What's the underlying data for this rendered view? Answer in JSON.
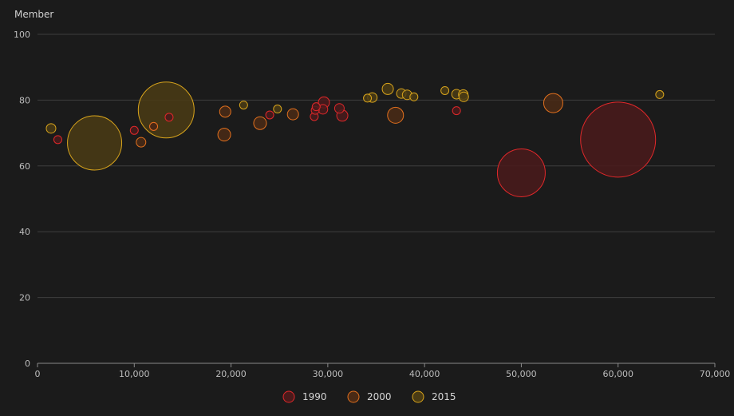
{
  "chart_data": {
    "type": "scatter",
    "title": "",
    "ylabel": "Member",
    "xlabel": "",
    "xlim": [
      0,
      70000
    ],
    "ylim": [
      0,
      100
    ],
    "xticks": [
      "0",
      "10,000",
      "20,000",
      "30,000",
      "40,000",
      "50,000",
      "60,000",
      "70,000"
    ],
    "yticks": [
      "0",
      "20",
      "40",
      "60",
      "80",
      "100"
    ],
    "grid": true,
    "legend_position": "bottom-center",
    "series": [
      {
        "name": "1990",
        "stroke": "#e0282a",
        "fill": "#4a1a1b",
        "points": [
          {
            "x": 2100,
            "y": 68,
            "size": 5
          },
          {
            "x": 10000,
            "y": 70.8,
            "size": 5
          },
          {
            "x": 12000,
            "y": 72.0,
            "size": 5
          },
          {
            "x": 13600,
            "y": 74.8,
            "size": 5
          },
          {
            "x": 24000,
            "y": 75.5,
            "size": 5
          },
          {
            "x": 28600,
            "y": 75.0,
            "size": 5
          },
          {
            "x": 28700,
            "y": 76.9,
            "size": 5
          },
          {
            "x": 28800,
            "y": 78.0,
            "size": 5
          },
          {
            "x": 29500,
            "y": 77.2,
            "size": 6
          },
          {
            "x": 29600,
            "y": 79.3,
            "size": 7
          },
          {
            "x": 31200,
            "y": 77.5,
            "size": 6
          },
          {
            "x": 31500,
            "y": 75.3,
            "size": 7
          },
          {
            "x": 43300,
            "y": 76.8,
            "size": 5
          },
          {
            "x": 50000,
            "y": 57.9,
            "size": 30
          },
          {
            "x": 60000,
            "y": 68.0,
            "size": 47
          }
        ]
      },
      {
        "name": "2000",
        "stroke": "#e2701e",
        "fill": "#4a2a15",
        "points": [
          {
            "x": 10700,
            "y": 67.2,
            "size": 6
          },
          {
            "x": 12000,
            "y": 72.0,
            "size": 5
          },
          {
            "x": 19300,
            "y": 69.5,
            "size": 8
          },
          {
            "x": 19400,
            "y": 76.5,
            "size": 7
          },
          {
            "x": 23000,
            "y": 73.0,
            "size": 8
          },
          {
            "x": 26400,
            "y": 75.7,
            "size": 7
          },
          {
            "x": 37000,
            "y": 75.4,
            "size": 10
          },
          {
            "x": 53300,
            "y": 79.1,
            "size": 12
          }
        ]
      },
      {
        "name": "2015",
        "stroke": "#d8a41c",
        "fill": "#4a3b14",
        "points": [
          {
            "x": 1400,
            "y": 71.4,
            "size": 6
          },
          {
            "x": 5900,
            "y": 67.0,
            "size": 34
          },
          {
            "x": 13300,
            "y": 77.0,
            "size": 35
          },
          {
            "x": 21300,
            "y": 78.5,
            "size": 5
          },
          {
            "x": 24800,
            "y": 77.3,
            "size": 5
          },
          {
            "x": 34100,
            "y": 80.6,
            "size": 5
          },
          {
            "x": 34600,
            "y": 80.8,
            "size": 6
          },
          {
            "x": 36200,
            "y": 83.4,
            "size": 7
          },
          {
            "x": 37600,
            "y": 82.0,
            "size": 6
          },
          {
            "x": 38200,
            "y": 81.6,
            "size": 6
          },
          {
            "x": 38900,
            "y": 81.0,
            "size": 5
          },
          {
            "x": 42100,
            "y": 82.9,
            "size": 5
          },
          {
            "x": 43300,
            "y": 81.8,
            "size": 6
          },
          {
            "x": 44000,
            "y": 81.7,
            "size": 6
          },
          {
            "x": 44050,
            "y": 81.0,
            "size": 6
          },
          {
            "x": 64300,
            "y": 81.7,
            "size": 5
          }
        ]
      }
    ]
  }
}
